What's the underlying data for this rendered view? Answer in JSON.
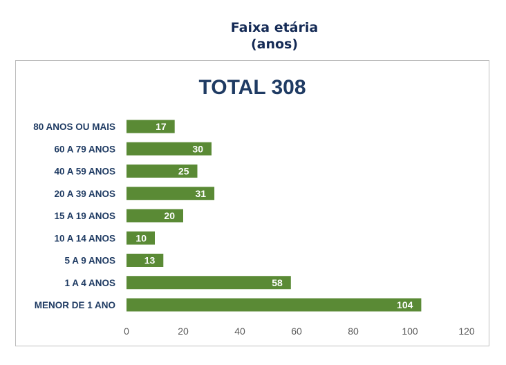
{
  "heading": {
    "line1": "Faixa etária",
    "line2": "(anos)"
  },
  "chart_data": {
    "type": "bar",
    "orientation": "horizontal",
    "title": "TOTAL 308",
    "categories": [
      "MENOR DE 1 ANO",
      "1 A 4 ANOS",
      "5 A 9 ANOS",
      "10 A 14 ANOS",
      "15 A 19 ANOS",
      "20 A 39 ANOS",
      "40 A 59 ANOS",
      "60 A 79 ANOS",
      "80 ANOS OU MAIS"
    ],
    "values": [
      104,
      58,
      13,
      10,
      20,
      31,
      25,
      30,
      17
    ],
    "xlim": [
      0,
      120
    ],
    "xticks": [
      0,
      20,
      40,
      60,
      80,
      100,
      120
    ],
    "bar_color": "#5a8a35",
    "data_labels": "inside-end",
    "grid": false,
    "legend": "none"
  }
}
